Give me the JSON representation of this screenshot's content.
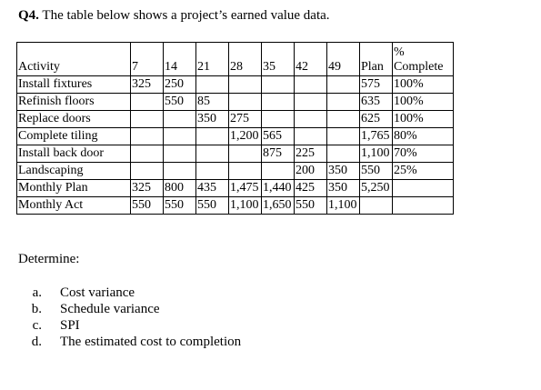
{
  "question": {
    "number": "Q4.",
    "text": "The table below shows a project’s earned value data."
  },
  "table": {
    "header": {
      "activity": "Activity",
      "weeks": [
        "7",
        "14",
        "21",
        "28",
        "35",
        "42",
        "49"
      ],
      "plan": "Plan",
      "complete_symbol": "%",
      "complete": "Complete"
    },
    "rows": [
      {
        "activity": "Install fixtures",
        "weeks": [
          "325",
          "250",
          "",
          "",
          "",
          "",
          ""
        ],
        "plan": "575",
        "complete": "100%"
      },
      {
        "activity": "Refinish floors",
        "weeks": [
          "",
          "550",
          "85",
          "",
          "",
          "",
          ""
        ],
        "plan": "635",
        "complete": "100%"
      },
      {
        "activity": "Replace doors",
        "weeks": [
          "",
          "",
          "350",
          "275",
          "",
          "",
          ""
        ],
        "plan": "625",
        "complete": "100%"
      },
      {
        "activity": "Complete tiling",
        "weeks": [
          "",
          "",
          "",
          "1,200",
          "565",
          "",
          ""
        ],
        "plan": "1,765",
        "complete": "80%"
      },
      {
        "activity": "Install back door",
        "weeks": [
          "",
          "",
          "",
          "",
          "875",
          "225",
          ""
        ],
        "plan": "1,100",
        "complete": "70%"
      },
      {
        "activity": "Landscaping",
        "weeks": [
          "",
          "",
          "",
          "",
          "",
          "200",
          "350"
        ],
        "plan": "550",
        "complete": "25%"
      },
      {
        "activity": "Monthly Plan",
        "weeks": [
          "325",
          "800",
          "435",
          "1,475",
          "1,440",
          "425",
          "350"
        ],
        "plan": "5,250",
        "complete": ""
      },
      {
        "activity": "Monthly Act",
        "weeks": [
          "550",
          "550",
          "550",
          "1,100",
          "1,650",
          "550",
          "1,100"
        ],
        "plan": "",
        "complete": ""
      }
    ]
  },
  "determine_label": "Determine:",
  "questions": [
    {
      "letter": "a.",
      "text": "Cost variance"
    },
    {
      "letter": "b.",
      "text": "Schedule variance"
    },
    {
      "letter": "c.",
      "text": "SPI"
    },
    {
      "letter": "d.",
      "text": "The estimated cost to completion"
    }
  ]
}
